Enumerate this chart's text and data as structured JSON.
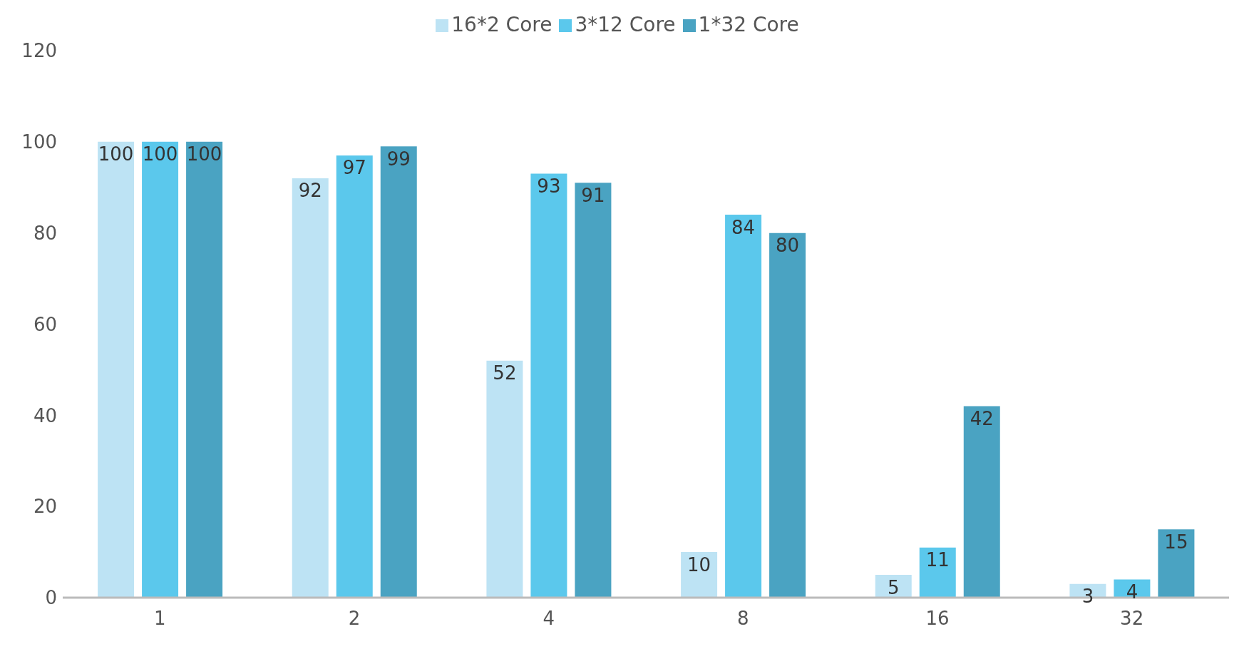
{
  "chart_data": {
    "type": "bar",
    "categories": [
      "1",
      "2",
      "4",
      "8",
      "16",
      "32"
    ],
    "series": [
      {
        "name": "16*2 Core",
        "color": "#bde3f4",
        "values": [
          100,
          92,
          52,
          10,
          5,
          3
        ]
      },
      {
        "name": "3*12 Core",
        "color": "#5bc8ec",
        "values": [
          100,
          97,
          93,
          84,
          11,
          4
        ]
      },
      {
        "name": "1*32 Core",
        "color": "#4aa3c2",
        "values": [
          100,
          99,
          91,
          80,
          42,
          15
        ]
      }
    ],
    "ylim": [
      0,
      120
    ],
    "yticks": [
      0,
      20,
      40,
      60,
      80,
      100,
      120
    ],
    "grid": false,
    "legend": "top",
    "data_labels": true
  }
}
